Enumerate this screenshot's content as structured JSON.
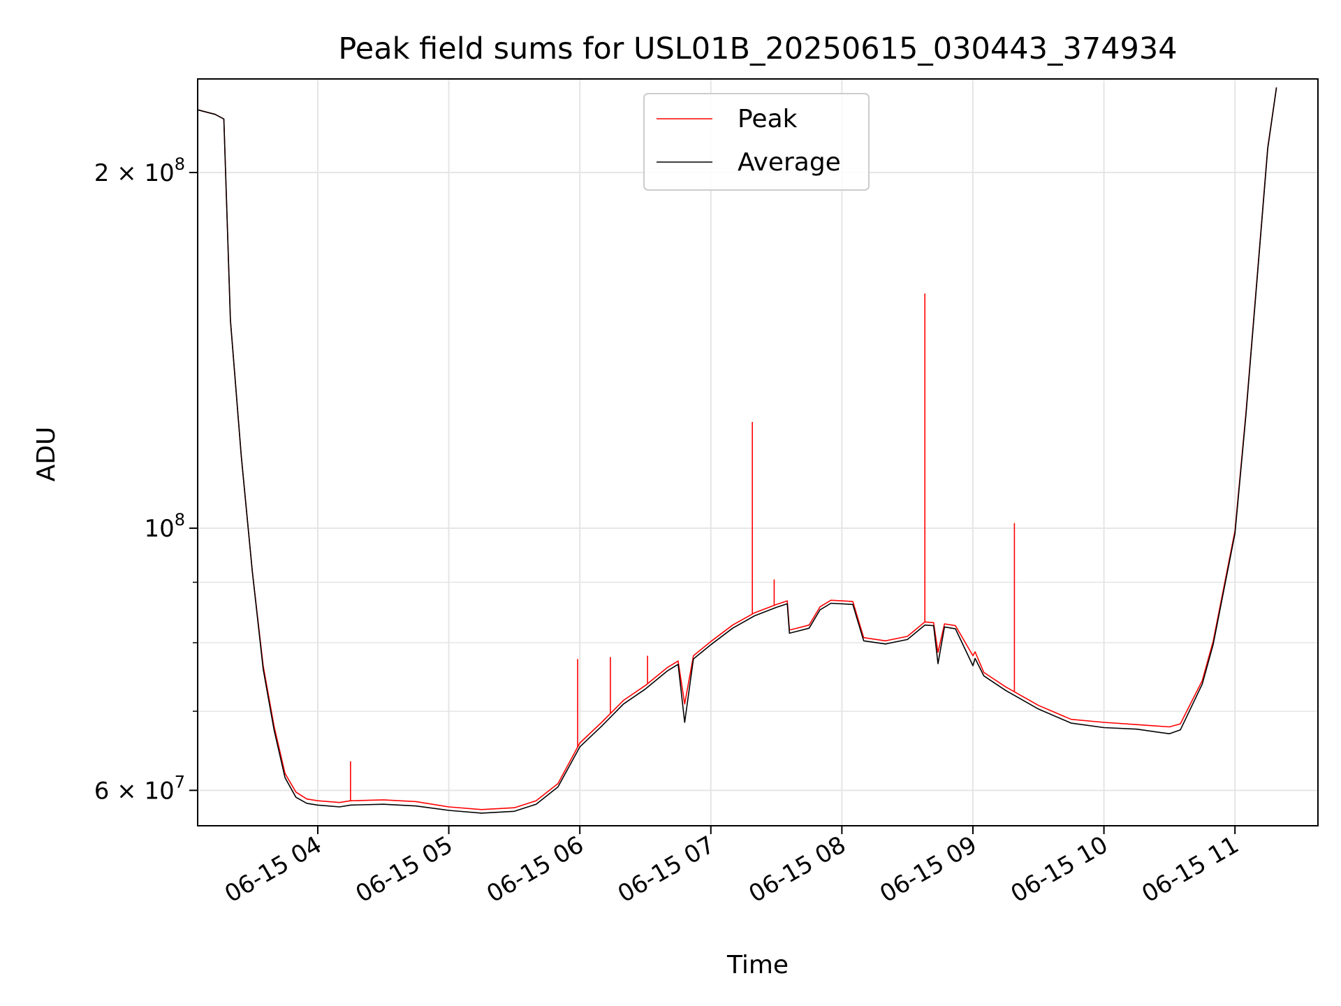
{
  "chart_data": {
    "type": "line",
    "title": "Peak field sums for USL01B_20250615_030443_374934",
    "xlabel": "Time",
    "ylabel": "ADU",
    "yscale": "log",
    "ylim": [
      56000000,
      240000000
    ],
    "xlim": [
      "2025-06-15 03:05",
      "2025-06-15 11:38"
    ],
    "grid": true,
    "legend_position": "top-center",
    "x_ticks": [
      {
        "value": "2025-06-15 04:00",
        "label": "06-15 04"
      },
      {
        "value": "2025-06-15 05:00",
        "label": "06-15 05"
      },
      {
        "value": "2025-06-15 06:00",
        "label": "06-15 06"
      },
      {
        "value": "2025-06-15 07:00",
        "label": "06-15 07"
      },
      {
        "value": "2025-06-15 08:00",
        "label": "06-15 08"
      },
      {
        "value": "2025-06-15 09:00",
        "label": "06-15 09"
      },
      {
        "value": "2025-06-15 10:00",
        "label": "06-15 10"
      },
      {
        "value": "2025-06-15 11:00",
        "label": "06-15 11"
      }
    ],
    "y_ticks": [
      {
        "value": 60000000,
        "base": "6 × 10",
        "exp": "7"
      },
      {
        "value": 100000000,
        "base": "10",
        "exp": "8"
      },
      {
        "value": 200000000,
        "base": "2 × 10",
        "exp": "8"
      }
    ],
    "y_minor_ticks": [
      70000000,
      80000000,
      90000000
    ],
    "series": [
      {
        "name": "Peak",
        "color": "#ff0000",
        "x": [
          "2025-06-15 03:05",
          "2025-06-15 03:13",
          "2025-06-15 03:17",
          "2025-06-15 03:20",
          "2025-06-15 03:25",
          "2025-06-15 03:30",
          "2025-06-15 03:35",
          "2025-06-15 03:40",
          "2025-06-15 03:45",
          "2025-06-15 03:50",
          "2025-06-15 03:55",
          "2025-06-15 04:00",
          "2025-06-15 04:05",
          "2025-06-15 04:10",
          "2025-06-15 04:15",
          "2025-06-15 04:30",
          "2025-06-15 04:45",
          "2025-06-15 05:00",
          "2025-06-15 05:15",
          "2025-06-15 05:30",
          "2025-06-15 05:40",
          "2025-06-15 05:50",
          "2025-06-15 06:00",
          "2025-06-15 06:10",
          "2025-06-15 06:20",
          "2025-06-15 06:30",
          "2025-06-15 06:40",
          "2025-06-15 06:45",
          "2025-06-15 06:48",
          "2025-06-15 06:52",
          "2025-06-15 07:00",
          "2025-06-15 07:10",
          "2025-06-15 07:20",
          "2025-06-15 07:30",
          "2025-06-15 07:35",
          "2025-06-15 07:36",
          "2025-06-15 07:45",
          "2025-06-15 07:50",
          "2025-06-15 07:55",
          "2025-06-15 08:05",
          "2025-06-15 08:10",
          "2025-06-15 08:20",
          "2025-06-15 08:30",
          "2025-06-15 08:38",
          "2025-06-15 08:42",
          "2025-06-15 08:44",
          "2025-06-15 08:47",
          "2025-06-15 08:52",
          "2025-06-15 09:00",
          "2025-06-15 09:01",
          "2025-06-15 09:05",
          "2025-06-15 09:15",
          "2025-06-15 09:30",
          "2025-06-15 09:45",
          "2025-06-15 10:00",
          "2025-06-15 10:15",
          "2025-06-15 10:30",
          "2025-06-15 10:35",
          "2025-06-15 10:45",
          "2025-06-15 10:50",
          "2025-06-15 11:00",
          "2025-06-15 11:05",
          "2025-06-15 11:10",
          "2025-06-15 11:15",
          "2025-06-15 11:19"
        ],
        "values": [
          226000000,
          224000000,
          222000000,
          150000000,
          115000000,
          92000000,
          76500000,
          68000000,
          62000000,
          59800000,
          59000000,
          58800000,
          58700000,
          58600000,
          58800000,
          58900000,
          58700000,
          58100000,
          57800000,
          58000000,
          58800000,
          60800000,
          65800000,
          68500000,
          71500000,
          73600000,
          76200000,
          77200000,
          71000000,
          78000000,
          80200000,
          82800000,
          84800000,
          86200000,
          86800000,
          82000000,
          82800000,
          85800000,
          86900000,
          86700000,
          80800000,
          80300000,
          81000000,
          83300000,
          83200000,
          78500000,
          83000000,
          82700000,
          78000000,
          78600000,
          75500000,
          73400000,
          70800000,
          68900000,
          68500000,
          68200000,
          67900000,
          68300000,
          74300000,
          80200000,
          99500000,
          125000000,
          162000000,
          210000000,
          236000000
        ],
        "spikes": [
          {
            "x": "2025-06-15 04:15",
            "value": 63500000
          },
          {
            "x": "2025-06-15 05:59",
            "value": 77500000
          },
          {
            "x": "2025-06-15 06:14",
            "value": 77800000
          },
          {
            "x": "2025-06-15 06:31",
            "value": 78000000
          },
          {
            "x": "2025-06-15 07:19",
            "value": 123000000
          },
          {
            "x": "2025-06-15 07:29",
            "value": 90500000
          },
          {
            "x": "2025-06-15 08:38",
            "value": 158000000
          },
          {
            "x": "2025-06-15 09:19",
            "value": 101000000
          }
        ]
      },
      {
        "name": "Average",
        "color": "#000000",
        "x": [
          "2025-06-15 03:05",
          "2025-06-15 03:13",
          "2025-06-15 03:17",
          "2025-06-15 03:20",
          "2025-06-15 03:25",
          "2025-06-15 03:30",
          "2025-06-15 03:35",
          "2025-06-15 03:40",
          "2025-06-15 03:45",
          "2025-06-15 03:50",
          "2025-06-15 03:55",
          "2025-06-15 04:00",
          "2025-06-15 04:05",
          "2025-06-15 04:10",
          "2025-06-15 04:15",
          "2025-06-15 04:30",
          "2025-06-15 04:45",
          "2025-06-15 05:00",
          "2025-06-15 05:15",
          "2025-06-15 05:30",
          "2025-06-15 05:40",
          "2025-06-15 05:50",
          "2025-06-15 06:00",
          "2025-06-15 06:10",
          "2025-06-15 06:20",
          "2025-06-15 06:30",
          "2025-06-15 06:40",
          "2025-06-15 06:45",
          "2025-06-15 06:48",
          "2025-06-15 06:52",
          "2025-06-15 07:00",
          "2025-06-15 07:10",
          "2025-06-15 07:20",
          "2025-06-15 07:30",
          "2025-06-15 07:35",
          "2025-06-15 07:36",
          "2025-06-15 07:45",
          "2025-06-15 07:50",
          "2025-06-15 07:55",
          "2025-06-15 08:05",
          "2025-06-15 08:10",
          "2025-06-15 08:20",
          "2025-06-15 08:30",
          "2025-06-15 08:38",
          "2025-06-15 08:42",
          "2025-06-15 08:44",
          "2025-06-15 08:47",
          "2025-06-15 08:52",
          "2025-06-15 09:00",
          "2025-06-15 09:01",
          "2025-06-15 09:05",
          "2025-06-15 09:15",
          "2025-06-15 09:30",
          "2025-06-15 09:45",
          "2025-06-15 10:00",
          "2025-06-15 10:15",
          "2025-06-15 10:30",
          "2025-06-15 10:35",
          "2025-06-15 10:45",
          "2025-06-15 10:50",
          "2025-06-15 11:00",
          "2025-06-15 11:05",
          "2025-06-15 11:10",
          "2025-06-15 11:15",
          "2025-06-15 11:19"
        ],
        "values": [
          226000000,
          224000000,
          222000000,
          150000000,
          115000000,
          92000000,
          76000000,
          67500000,
          61500000,
          59200000,
          58500000,
          58300000,
          58200000,
          58100000,
          58300000,
          58400000,
          58200000,
          57700000,
          57400000,
          57600000,
          58400000,
          60400000,
          65300000,
          68000000,
          71000000,
          73100000,
          75700000,
          76700000,
          68500000,
          77500000,
          79700000,
          82300000,
          84300000,
          85700000,
          86300000,
          81500000,
          82300000,
          85300000,
          86400000,
          86200000,
          80300000,
          79800000,
          80500000,
          82800000,
          82700000,
          76800000,
          82500000,
          82200000,
          76500000,
          77600000,
          75000000,
          72900000,
          70300000,
          68400000,
          67800000,
          67600000,
          67000000,
          67500000,
          73800000,
          79700000,
          99000000,
          124500000,
          161500000,
          209500000,
          236000000
        ]
      }
    ]
  }
}
